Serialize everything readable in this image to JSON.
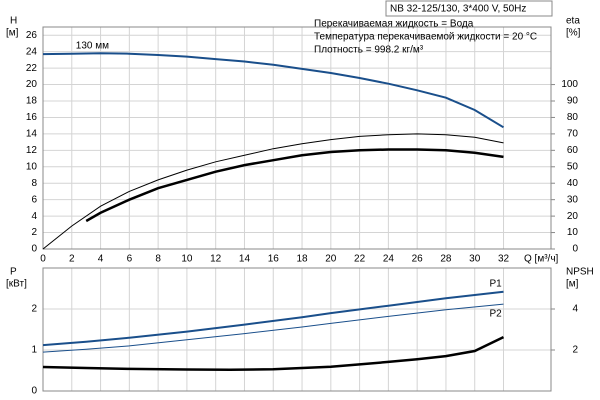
{
  "chart_data": [
    {
      "type": "line",
      "title": "NB 32-125/130, 3*400 V, 50Hz",
      "annotations": [
        "Перекачиваемая жидкость = Вода",
        "Температура перекачиваемой жидкости = 20 °C",
        "Плотность = 998.2 кг/м³"
      ],
      "ylabel": "H",
      "ylabel_unit": "[м]",
      "y2label": "eta",
      "y2label_unit": "[%]",
      "xlabel": "Q [м³/ч]",
      "xlim": [
        0,
        35.3
      ],
      "xticks": [
        0,
        2,
        4,
        6,
        8,
        10,
        12,
        14,
        16,
        18,
        20,
        22,
        24,
        26,
        28,
        30,
        32
      ],
      "ylim": [
        0,
        27
      ],
      "yticks": [
        0,
        2,
        4,
        6,
        8,
        10,
        12,
        14,
        16,
        18,
        20,
        22,
        24,
        26
      ],
      "y2lim": [
        0,
        135
      ],
      "y2ticks": [
        0,
        10,
        20,
        30,
        40,
        50,
        60,
        70,
        80,
        90,
        100
      ],
      "grid": true,
      "series": [
        {
          "name": "130 мм",
          "color": "#1a4f8b",
          "width": 2,
          "x": [
            0,
            2,
            4,
            6,
            8,
            10,
            12,
            14,
            16,
            18,
            20,
            22,
            24,
            26,
            28,
            30,
            32
          ],
          "values": [
            23.7,
            23.75,
            23.8,
            23.75,
            23.6,
            23.4,
            23.1,
            22.8,
            22.4,
            21.9,
            21.4,
            20.8,
            20.1,
            19.3,
            18.4,
            16.9,
            14.8
          ]
        },
        {
          "color": "#000000",
          "width": 1,
          "axis": "y2",
          "x": [
            0,
            2,
            4,
            6,
            8,
            10,
            12,
            14,
            16,
            18,
            20,
            22,
            24,
            26,
            28,
            30,
            32
          ],
          "values": [
            0,
            14,
            26,
            35,
            42,
            48,
            53,
            57,
            61,
            64,
            66.5,
            68.5,
            69.5,
            70,
            69.5,
            68,
            64.5
          ]
        },
        {
          "color": "#000000",
          "width": 2.5,
          "axis": "y2",
          "x": [
            3,
            4,
            6,
            8,
            10,
            12,
            14,
            16,
            18,
            20,
            22,
            24,
            26,
            28,
            30,
            32
          ],
          "values": [
            17,
            22,
            30,
            37,
            42,
            47,
            51,
            54,
            57,
            59,
            60,
            60.5,
            60.5,
            60,
            58.5,
            56
          ]
        }
      ]
    },
    {
      "type": "line",
      "ylabel": "P",
      "ylabel_unit": "[кВт]",
      "y2label": "NPSH",
      "y2label_unit": "[м]",
      "xlim": [
        0,
        35.3
      ],
      "ylim": [
        0,
        3
      ],
      "yticks": [
        0,
        1,
        2
      ],
      "y2lim": [
        0,
        6
      ],
      "y2ticks": [
        2,
        4
      ],
      "grid": true,
      "series": [
        {
          "name": "P1",
          "color": "#1a4f8b",
          "width": 2,
          "x": [
            0,
            3,
            6,
            10,
            14,
            18,
            20,
            24,
            28,
            32
          ],
          "values": [
            1.12,
            1.2,
            1.3,
            1.45,
            1.62,
            1.8,
            1.9,
            2.08,
            2.26,
            2.42
          ]
        },
        {
          "name": "P2",
          "color": "#1a4f8b",
          "width": 1,
          "x": [
            0,
            3,
            6,
            10,
            14,
            18,
            20,
            24,
            28,
            32
          ],
          "values": [
            0.95,
            1.02,
            1.1,
            1.25,
            1.4,
            1.56,
            1.65,
            1.82,
            1.98,
            2.12
          ]
        },
        {
          "color": "#000000",
          "width": 2.5,
          "axis": "y2",
          "x": [
            0,
            3,
            6,
            10,
            13,
            16,
            20,
            22,
            24,
            26,
            28,
            30,
            32
          ],
          "values": [
            1.17,
            1.12,
            1.08,
            1.05,
            1.04,
            1.06,
            1.18,
            1.3,
            1.42,
            1.55,
            1.7,
            1.95,
            2.63
          ]
        }
      ]
    }
  ]
}
